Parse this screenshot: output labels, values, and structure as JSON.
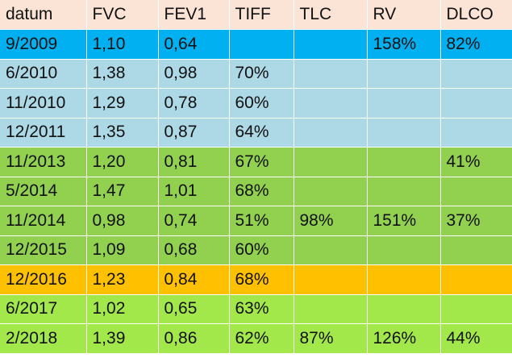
{
  "table": {
    "headers": [
      "datum",
      "FVC",
      "FEV1",
      "TIFF",
      "TLC",
      "RV",
      "DLCO"
    ],
    "rows": [
      {
        "style": "blue",
        "cells": [
          "9/2009",
          "1,10",
          "0,64",
          "",
          "",
          "158%",
          "82%"
        ]
      },
      {
        "style": "lightblue",
        "cells": [
          "6/2010",
          "1,38",
          "0,98",
          "70%",
          "",
          "",
          ""
        ]
      },
      {
        "style": "lightblue",
        "cells": [
          "11/2010",
          "1,29",
          "0,78",
          "60%",
          "",
          "",
          ""
        ]
      },
      {
        "style": "lightblue",
        "cells": [
          "12/2011",
          "1,35",
          "0,87",
          "64%",
          "",
          "",
          ""
        ]
      },
      {
        "style": "green",
        "cells": [
          "11/2013",
          "1,20",
          "0,81",
          "67%",
          "",
          "",
          "41%"
        ]
      },
      {
        "style": "green",
        "cells": [
          "5/2014",
          "1,47",
          "1,01",
          "68%",
          "",
          "",
          ""
        ]
      },
      {
        "style": "green",
        "cells": [
          "11/2014",
          "0,98",
          "0,74",
          "51%",
          "98%",
          "151%",
          "37%"
        ]
      },
      {
        "style": "green",
        "cells": [
          "12/2015",
          "1,09",
          "0,68",
          "60%",
          "",
          "",
          ""
        ]
      },
      {
        "style": "orange",
        "cells": [
          "12/2016",
          "1,23",
          "0,84",
          "68%",
          "",
          "",
          ""
        ]
      },
      {
        "style": "lime",
        "cells": [
          "6/2017",
          "1,02",
          "0,65",
          "63%",
          "",
          "",
          ""
        ]
      },
      {
        "style": "lime",
        "cells": [
          "2/2018",
          "1,39",
          "0,86",
          "62%",
          "87%",
          "126%",
          "44%"
        ]
      }
    ]
  },
  "colors": {
    "header": "#fbe4d5",
    "blue": "#00b0f0",
    "lightblue": "#add8e6",
    "green": "#92d050",
    "orange": "#ffc000",
    "lime": "#a3e84a"
  }
}
